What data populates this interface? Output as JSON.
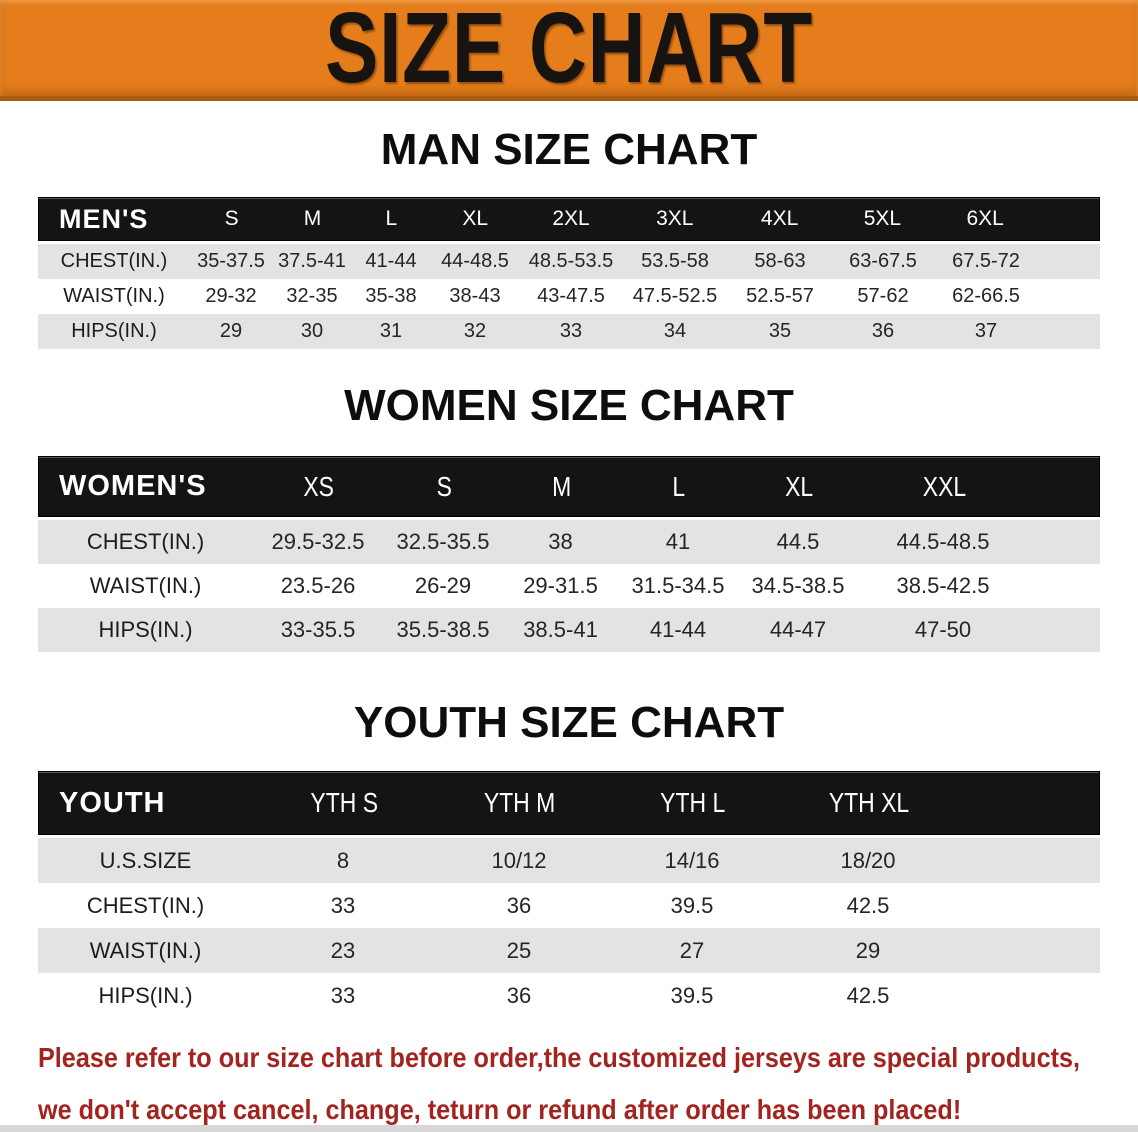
{
  "banner": {
    "title": "SIZE CHART",
    "bg_color": "#E57D1C",
    "edge_color": "#A85C10",
    "text_color": "#171310"
  },
  "chart_data": [
    {
      "type": "table",
      "title": "MAN SIZE CHART",
      "corner_label": "MEN'S",
      "columns": [
        "S",
        "M",
        "L",
        "XL",
        "2XL",
        "3XL",
        "4XL",
        "5XL",
        "6XL"
      ],
      "rows": [
        {
          "label": "CHEST(IN.)",
          "values": [
            "35-37.5",
            "37.5-41",
            "41-44",
            "44-48.5",
            "48.5-53.5",
            "53.5-58",
            "58-63",
            "63-67.5",
            "67.5-72"
          ]
        },
        {
          "label": "WAIST(IN.)",
          "values": [
            "29-32",
            "32-35",
            "35-38",
            "38-43",
            "43-47.5",
            "47.5-52.5",
            "52.5-57",
            "57-62",
            "62-66.5"
          ]
        },
        {
          "label": "HIPS(IN.)",
          "values": [
            "29",
            "30",
            "31",
            "32",
            "33",
            "34",
            "35",
            "36",
            "37"
          ]
        }
      ]
    },
    {
      "type": "table",
      "title": "WOMEN SIZE CHART",
      "corner_label": "WOMEN'S",
      "columns": [
        "XS",
        "S",
        "M",
        "L",
        "XL",
        "XXL"
      ],
      "rows": [
        {
          "label": "CHEST(IN.)",
          "values": [
            "29.5-32.5",
            "32.5-35.5",
            "38",
            "41",
            "44.5",
            "44.5-48.5"
          ]
        },
        {
          "label": "WAIST(IN.)",
          "values": [
            "23.5-26",
            "26-29",
            "29-31.5",
            "31.5-34.5",
            "34.5-38.5",
            "38.5-42.5"
          ]
        },
        {
          "label": "HIPS(IN.)",
          "values": [
            "33-35.5",
            "35.5-38.5",
            "38.5-41",
            "41-44",
            "44-47",
            "47-50"
          ]
        }
      ]
    },
    {
      "type": "table",
      "title": "YOUTH SIZE CHART",
      "corner_label": "YOUTH",
      "columns": [
        "YTH S",
        "YTH M",
        "YTH L",
        "YTH XL"
      ],
      "rows": [
        {
          "label": "U.S.SIZE",
          "values": [
            "8",
            "10/12",
            "14/16",
            "18/20"
          ]
        },
        {
          "label": "CHEST(IN.)",
          "values": [
            "33",
            "36",
            "39.5",
            "42.5"
          ]
        },
        {
          "label": "WAIST(IN.)",
          "values": [
            "23",
            "25",
            "27",
            "29"
          ]
        },
        {
          "label": "HIPS(IN.)",
          "values": [
            "33",
            "36",
            "39.5",
            "42.5"
          ]
        }
      ]
    }
  ],
  "disclaimer": {
    "line1": "Please refer to our size chart before order,the customized jerseys are special products,",
    "line2": "we don't accept cancel, change, teturn or refund after order has been placed!",
    "color": "#A3241F"
  },
  "stripe_color": "#e3e3e3",
  "header_bar_color": "#141414"
}
